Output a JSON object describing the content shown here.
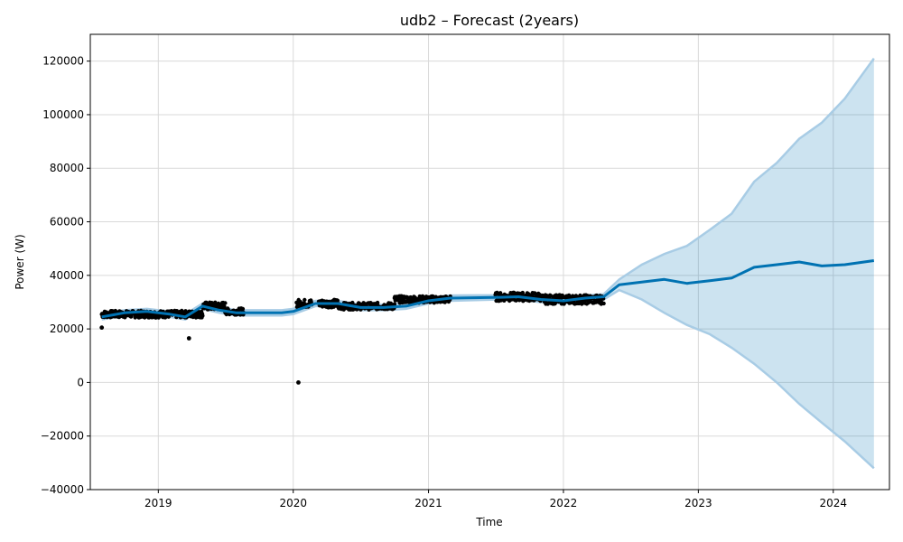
{
  "chart_data": {
    "type": "line",
    "title": "udb2 – Forecast (2years)",
    "xlabel": "Time",
    "ylabel": "Power (W)",
    "xlim": [
      "2018-07-01",
      "2024-06-01"
    ],
    "ylim": [
      -40000,
      130000
    ],
    "grid": true,
    "x_ticks": [
      "2019",
      "2020",
      "2021",
      "2022",
      "2023",
      "2024"
    ],
    "y_ticks": [
      -40000,
      -20000,
      0,
      20000,
      40000,
      60000,
      80000,
      100000,
      120000
    ],
    "colors": {
      "observed": "#000000",
      "forecast": "#0072B2",
      "interval_fill": "#0072B2",
      "interval_edge": "#a8cce5",
      "grid": "#d9d9d9"
    },
    "observed_segments": [
      {
        "start": "2018-08-01",
        "end": "2019-03-01",
        "center": 25500,
        "spread": 1300
      },
      {
        "start": "2019-03-01",
        "end": "2019-05-01",
        "center": 25500,
        "spread": 1300
      },
      {
        "start": "2019-05-01",
        "end": "2019-07-01",
        "center": 28500,
        "spread": 1500
      },
      {
        "start": "2019-07-01",
        "end": "2019-08-20",
        "center": 26500,
        "spread": 1200
      },
      {
        "start": "2020-01-10",
        "end": "2020-02-20",
        "center": 29500,
        "spread": 1500
      },
      {
        "start": "2020-03-10",
        "end": "2020-05-01",
        "center": 29500,
        "spread": 1500
      },
      {
        "start": "2020-05-01",
        "end": "2020-10-01",
        "center": 28500,
        "spread": 1300
      },
      {
        "start": "2020-10-01",
        "end": "2021-03-01",
        "center": 31000,
        "spread": 1300
      },
      {
        "start": "2021-07-01",
        "end": "2021-11-01",
        "center": 32000,
        "spread": 1600
      },
      {
        "start": "2021-11-01",
        "end": "2022-04-20",
        "center": 31000,
        "spread": 1700
      }
    ],
    "outliers": [
      {
        "x": "2018-08-01",
        "y": 20500
      },
      {
        "x": "2019-03-25",
        "y": 16500
      },
      {
        "x": "2020-01-15",
        "y": 0
      }
    ],
    "forecast": {
      "x": [
        "2018-08-01",
        "2018-10-01",
        "2018-12-01",
        "2019-02-01",
        "2019-03-15",
        "2019-05-01",
        "2019-06-15",
        "2019-08-01",
        "2019-10-01",
        "2019-12-01",
        "2020-01-01",
        "2020-03-01",
        "2020-05-01",
        "2020-07-01",
        "2020-09-01",
        "2020-11-01",
        "2021-01-01",
        "2021-03-01",
        "2021-07-15",
        "2021-09-01",
        "2021-11-01",
        "2022-01-01",
        "2022-03-01",
        "2022-04-20",
        "2022-06-01",
        "2022-08-01",
        "2022-10-01",
        "2022-12-01",
        "2023-02-01",
        "2023-04-01",
        "2023-06-01",
        "2023-08-01",
        "2023-10-01",
        "2023-12-01",
        "2024-02-01",
        "2024-04-20"
      ],
      "yhat": [
        24500,
        26000,
        26500,
        25500,
        24500,
        28500,
        27000,
        26000,
        26000,
        26000,
        26500,
        29500,
        29500,
        28000,
        28000,
        28500,
        30500,
        31500,
        31800,
        32000,
        31000,
        30500,
        31500,
        32000,
        36500,
        37500,
        38500,
        37000,
        38000,
        39000,
        43000,
        44000,
        45000,
        43500,
        44000,
        45500
      ],
      "lower": [
        23500,
        25000,
        25500,
        24500,
        23500,
        27500,
        26000,
        25000,
        25000,
        25000,
        25500,
        28500,
        28500,
        27000,
        27000,
        27500,
        29500,
        30500,
        31000,
        31000,
        30000,
        29500,
        30500,
        31000,
        34500,
        31000,
        26000,
        21500,
        18000,
        13000,
        7000,
        0,
        -8000,
        -15000,
        -22000,
        -32000
      ],
      "upper": [
        25500,
        27000,
        27500,
        26500,
        25500,
        29500,
        28000,
        27000,
        27000,
        27000,
        27500,
        30500,
        30500,
        29000,
        29000,
        29500,
        31500,
        32500,
        32600,
        33000,
        32000,
        31500,
        32500,
        33000,
        38500,
        44000,
        48000,
        51000,
        57000,
        63000,
        75000,
        82000,
        91000,
        97000,
        106000,
        121000
      ]
    }
  }
}
